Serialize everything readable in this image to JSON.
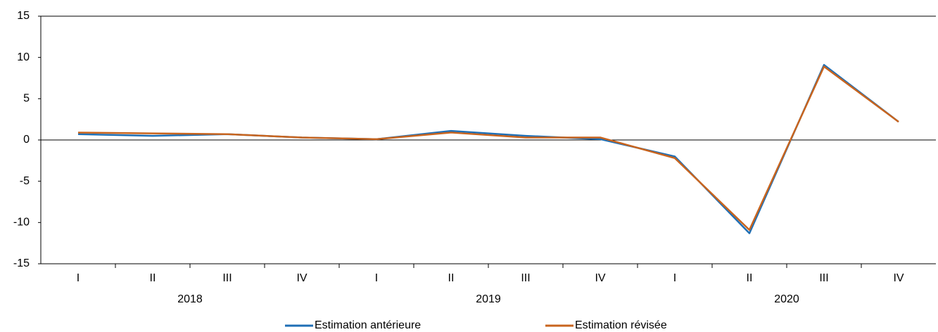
{
  "chart_data": {
    "type": "line",
    "categories": [
      "I",
      "II",
      "III",
      "IV",
      "I",
      "II",
      "III",
      "IV",
      "I",
      "II",
      "III",
      "IV"
    ],
    "groups": [
      "2018",
      "2019",
      "2020"
    ],
    "series": [
      {
        "name": "Estimation antérieure",
        "color": "#1f6fb5",
        "values": [
          0.7,
          0.5,
          0.7,
          0.3,
          0.1,
          1.1,
          0.5,
          0.1,
          -2.0,
          -11.3,
          9.1,
          2.2
        ]
      },
      {
        "name": "Estimation révisée",
        "color": "#c8641e",
        "values": [
          0.9,
          0.8,
          0.7,
          0.3,
          0.1,
          0.9,
          0.3,
          0.3,
          -2.2,
          -10.9,
          8.9,
          2.2
        ]
      }
    ],
    "ylim": [
      -15,
      15
    ],
    "yticks": [
      -15,
      -10,
      -5,
      0,
      5,
      10,
      15
    ],
    "legend": "bottom"
  }
}
